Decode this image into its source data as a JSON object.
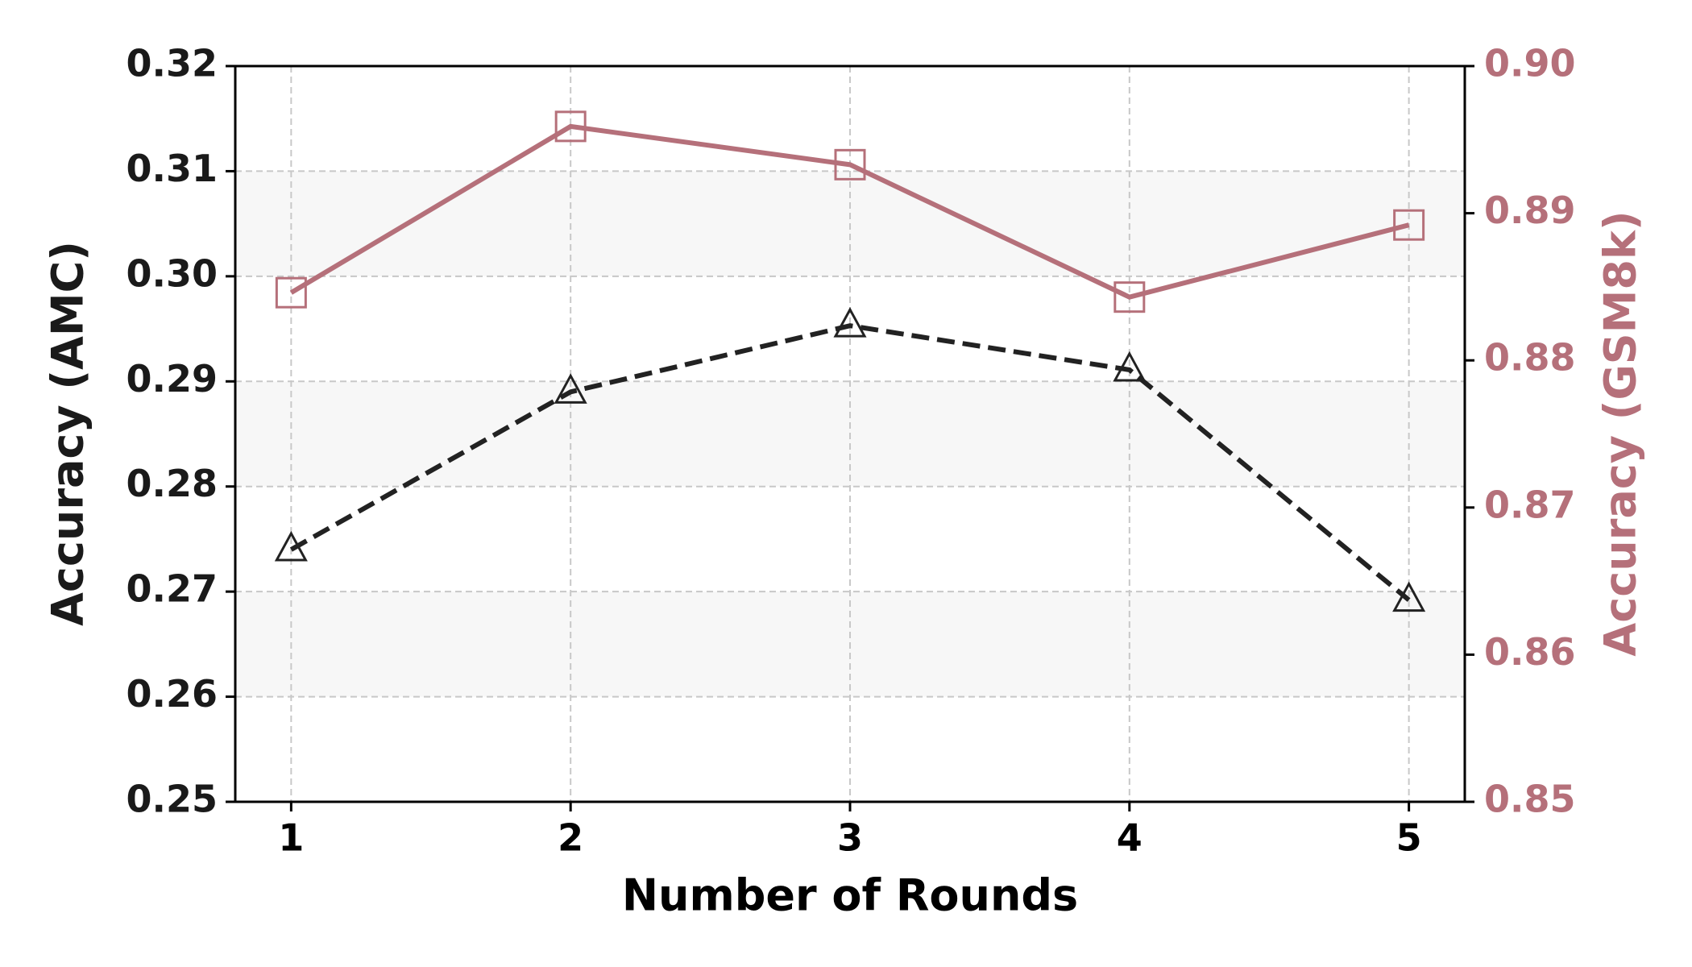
{
  "chart_data": {
    "type": "line",
    "x_label": "Number of Rounds",
    "y_label": "Accuracy (AMC)",
    "y2_label": "Accuracy (GSM8k)",
    "x": [
      1,
      2,
      3,
      4,
      5
    ],
    "xlim": [
      0.8,
      5.2
    ],
    "xticks": [
      1,
      2,
      3,
      4,
      5
    ],
    "ylim": [
      0.25,
      0.32
    ],
    "yticks": [
      0.25,
      0.26,
      0.27,
      0.28,
      0.29,
      0.3,
      0.31,
      0.32
    ],
    "y2lim": [
      0.85,
      0.9
    ],
    "y2ticks": [
      0.85,
      0.86,
      0.87,
      0.88,
      0.89,
      0.9
    ],
    "grid": true,
    "y_color": "#1a1a1a",
    "y2_color": "#b5707a",
    "series": [
      {
        "color": "#222222",
        "linestyle": "dashed",
        "marker": "triangle",
        "values": [
          0.274,
          0.289,
          0.2953,
          0.2911,
          0.2692
        ]
      },
      {
        "color": "#b5707a",
        "linestyle": "solid",
        "marker": "square",
        "axis": "y2",
        "values": [
          0.8846,
          0.8959,
          0.8933,
          0.8843,
          0.8892
        ]
      }
    ]
  }
}
